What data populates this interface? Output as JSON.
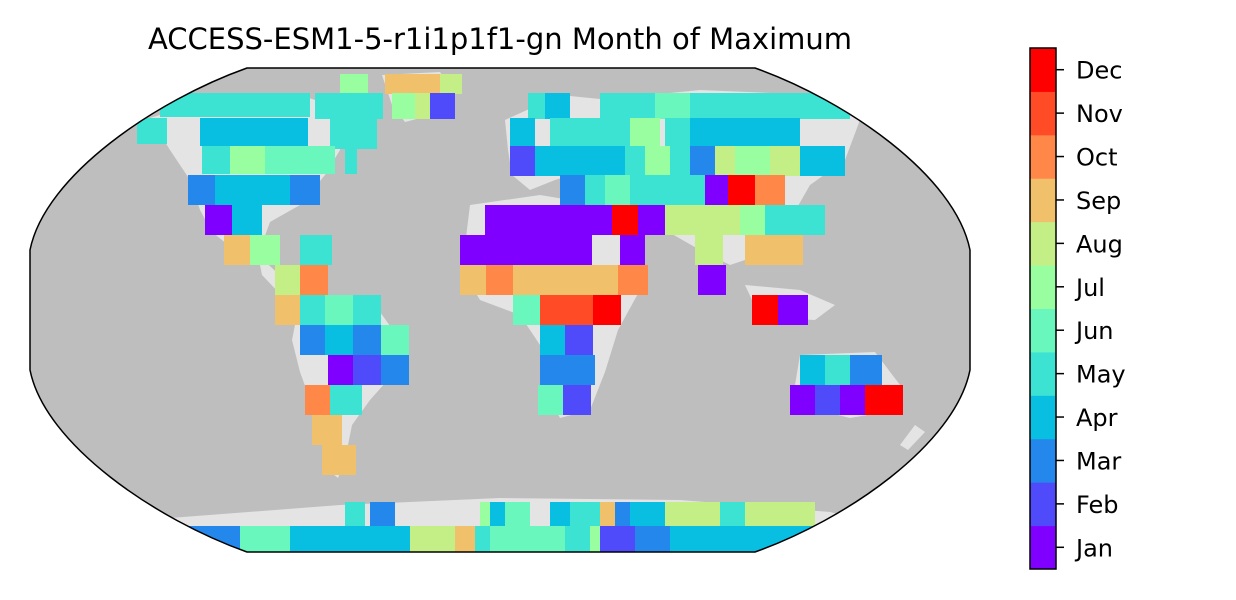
{
  "title": "ACCESS-ESM1-5-r1i1p1f1-gn Month of Maximum",
  "colorbar": {
    "labels": [
      "Jan",
      "Feb",
      "Mar",
      "Apr",
      "May",
      "Jun",
      "Jul",
      "Aug",
      "Sep",
      "Oct",
      "Nov",
      "Dec"
    ],
    "colors": [
      "#8000ff",
      "#4f4bfb",
      "#2487ec",
      "#08bee1",
      "#3ce3d3",
      "#69f7be",
      "#99fea0",
      "#c4ef87",
      "#f0c06a",
      "#ff8849",
      "#ff4c27",
      "#ff0000"
    ]
  },
  "map": {
    "ocean_color": "#bebebe",
    "land_color": "#e4e4e4",
    "projection": "Robinson"
  }
}
